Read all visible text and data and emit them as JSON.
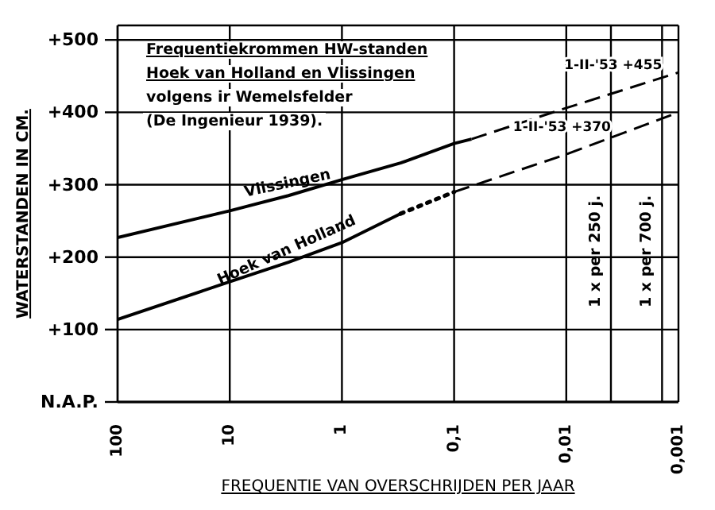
{
  "chart_data": {
    "type": "line",
    "title": "Frequentiekrommen HW-standen\nHoek van Holland en Vlissingen",
    "subtitle": "volgens ir Wemelsfelder\n(De Ingenieur 1939).",
    "xlabel": "FREQUENTIE VAN OVERSCHRIJDEN PER JAAR",
    "ylabel": "WATERSTANDEN IN CM.",
    "series": [
      {
        "name": "Vlissingen",
        "color": "#000000",
        "line_style": "solid",
        "x": [
          100,
          10,
          3,
          1,
          0.3,
          0.1,
          0.07
        ],
        "values": [
          227,
          264,
          285,
          307,
          330,
          357,
          363
        ]
      },
      {
        "color": "#000000",
        "line_style": "dashed",
        "x": [
          0.07,
          0.01,
          0.001
        ],
        "values": [
          363,
          406,
          455
        ]
      },
      {
        "name": "Hoek van Holland",
        "color": "#000000",
        "line_style": "solid",
        "x": [
          100,
          10,
          3,
          1,
          0.3
        ],
        "values": [
          114,
          166,
          193,
          220,
          260
        ]
      },
      {
        "color": "#000000",
        "line_style": "dotted",
        "x": [
          0.3,
          0.1
        ],
        "values": [
          260,
          290
        ]
      },
      {
        "color": "#000000",
        "line_style": "dashed",
        "x": [
          0.1,
          0.01,
          0.001
        ],
        "values": [
          290,
          342,
          400
        ]
      }
    ],
    "log": "x",
    "xlim": [
      100,
      0.001
    ],
    "xticks": [
      100,
      10,
      1,
      {
        "value": 0.1,
        "label": "0,1"
      },
      {
        "value": 0.01,
        "label": "0,01"
      },
      {
        "value": 0.001,
        "label": "0,001"
      }
    ],
    "ylim": [
      0,
      520
    ],
    "yticks": [
      {
        "value": 0,
        "label": "N.A.P."
      },
      {
        "value": 100,
        "label": "+100"
      },
      {
        "value": 200,
        "label": "+200"
      },
      {
        "value": 300,
        "label": "+300"
      },
      {
        "value": 400,
        "label": "+400"
      },
      {
        "value": 500,
        "label": "+500"
      }
    ],
    "grid": true,
    "legend": false,
    "marker": "none",
    "ref_lines": [
      {
        "axis": "x",
        "value": 0.004,
        "label": "1 x per 250 j.",
        "color": "#000000"
      },
      {
        "axis": "x",
        "value": 0.0014,
        "label": "1 x per 700 j.",
        "color": "#000000"
      }
    ],
    "annotations": [
      {
        "text": "1-II-'53 +455",
        "x": 0.0014,
        "y": 455
      },
      {
        "text": "1-II-'53 +370",
        "x": 0.004,
        "y": 370
      }
    ]
  }
}
